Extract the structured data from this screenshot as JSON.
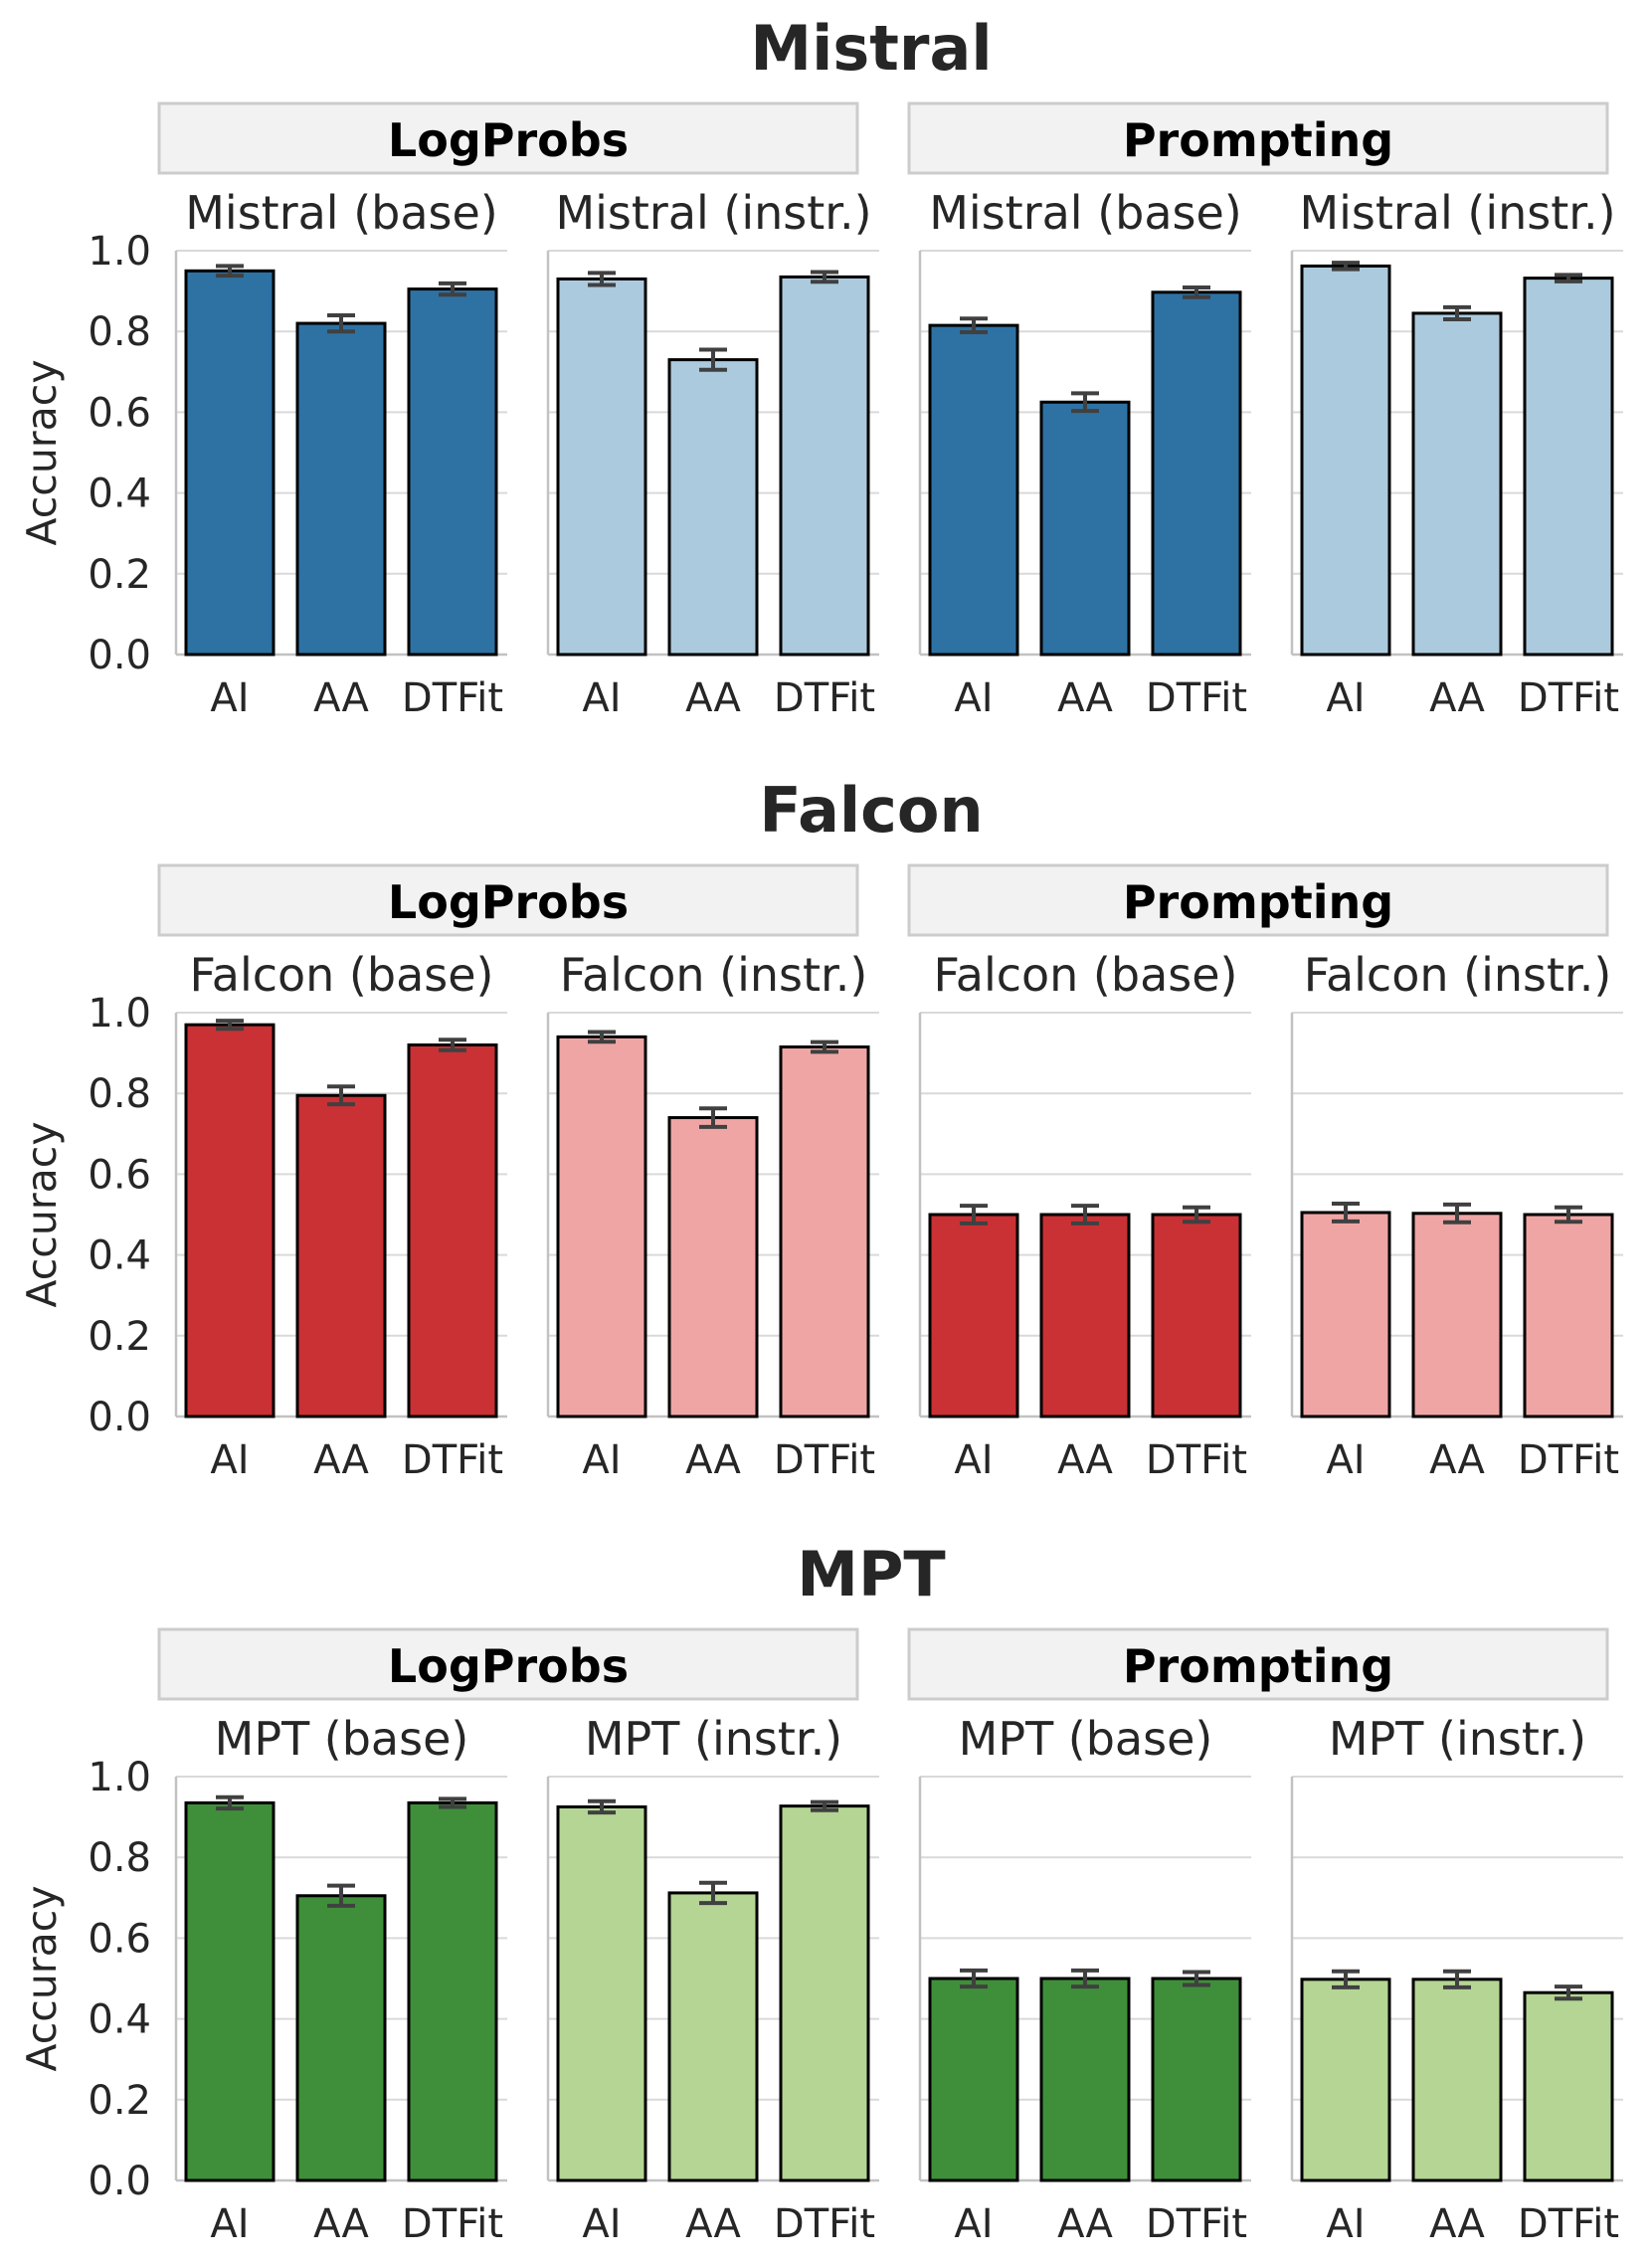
{
  "chart_data": {
    "type": "bar",
    "ylabel": "Accuracy",
    "ylim": [
      0,
      1.0
    ],
    "yticks": [
      "0.0",
      "0.2",
      "0.4",
      "0.6",
      "0.8",
      "1.0"
    ],
    "categories": [
      "AI",
      "AA",
      "DTFit"
    ],
    "colors": {
      "Mistral": {
        "base": "#2e72a4",
        "instr": "#abcadd"
      },
      "Falcon": {
        "base": "#c93135",
        "instr": "#f0a5a5"
      },
      "MPT": {
        "base": "#3f8f3a",
        "instr": "#b4d593"
      }
    },
    "models": [
      {
        "name": "Mistral",
        "groups": [
          {
            "label": "LogProbs",
            "subplots": [
              {
                "title": "Mistral (base)",
                "variant": "base",
                "values": [
                  0.95,
                  0.82,
                  0.905
                ],
                "err": [
                  0.012,
                  0.02,
                  0.014
                ]
              },
              {
                "title": "Mistral (instr.)",
                "variant": "instr",
                "values": [
                  0.93,
                  0.73,
                  0.935
                ],
                "err": [
                  0.015,
                  0.025,
                  0.012
                ]
              }
            ]
          },
          {
            "label": "Prompting",
            "subplots": [
              {
                "title": "Mistral (base)",
                "variant": "base",
                "values": [
                  0.815,
                  0.625,
                  0.897
                ],
                "err": [
                  0.017,
                  0.022,
                  0.012
                ]
              },
              {
                "title": "Mistral (instr.)",
                "variant": "instr",
                "values": [
                  0.962,
                  0.845,
                  0.932
                ],
                "err": [
                  0.008,
                  0.015,
                  0.008
                ]
              }
            ]
          }
        ]
      },
      {
        "name": "Falcon",
        "groups": [
          {
            "label": "LogProbs",
            "subplots": [
              {
                "title": "Falcon (base)",
                "variant": "base",
                "values": [
                  0.97,
                  0.795,
                  0.92
                ],
                "err": [
                  0.01,
                  0.022,
                  0.013
                ]
              },
              {
                "title": "Falcon (instr.)",
                "variant": "instr",
                "values": [
                  0.94,
                  0.74,
                  0.915
                ],
                "err": [
                  0.012,
                  0.023,
                  0.012
                ]
              }
            ]
          },
          {
            "label": "Prompting",
            "subplots": [
              {
                "title": "Falcon (base)",
                "variant": "base",
                "values": [
                  0.5,
                  0.5,
                  0.5
                ],
                "err": [
                  0.022,
                  0.022,
                  0.018
                ]
              },
              {
                "title": "Falcon (instr.)",
                "variant": "instr",
                "values": [
                  0.505,
                  0.503,
                  0.5
                ],
                "err": [
                  0.022,
                  0.022,
                  0.018
                ]
              }
            ]
          }
        ]
      },
      {
        "name": "MPT",
        "groups": [
          {
            "label": "LogProbs",
            "subplots": [
              {
                "title": "MPT (base)",
                "variant": "base",
                "values": [
                  0.935,
                  0.705,
                  0.935
                ],
                "err": [
                  0.014,
                  0.025,
                  0.01
                ]
              },
              {
                "title": "MPT (instr.)",
                "variant": "instr",
                "values": [
                  0.925,
                  0.712,
                  0.927
                ],
                "err": [
                  0.014,
                  0.025,
                  0.01
                ]
              }
            ]
          },
          {
            "label": "Prompting",
            "subplots": [
              {
                "title": "MPT (base)",
                "variant": "base",
                "values": [
                  0.5,
                  0.5,
                  0.5
                ],
                "err": [
                  0.02,
                  0.02,
                  0.016
                ]
              },
              {
                "title": "MPT (instr.)",
                "variant": "instr",
                "values": [
                  0.498,
                  0.498,
                  0.465
                ],
                "err": [
                  0.02,
                  0.02,
                  0.015
                ]
              }
            ]
          }
        ]
      }
    ]
  }
}
